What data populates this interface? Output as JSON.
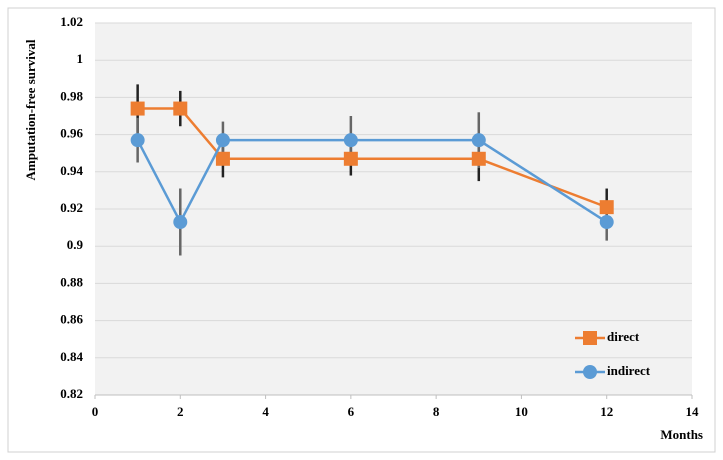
{
  "chart_data": {
    "type": "line",
    "ylabel": "Amputation-free survival",
    "xlabel": "Months",
    "x": [
      1,
      2,
      3,
      6,
      9,
      12
    ],
    "series": [
      {
        "name": "direct",
        "color": "#ed7d31",
        "marker": "square",
        "values": [
          0.974,
          0.974,
          0.947,
          0.947,
          0.947,
          0.921
        ],
        "errors": [
          0.013,
          0.0095,
          0.01,
          0.009,
          0.012,
          0.01
        ]
      },
      {
        "name": "indirect",
        "color": "#5b9bd5",
        "marker": "circle",
        "values": [
          0.957,
          0.913,
          0.957,
          0.957,
          0.957,
          0.913
        ],
        "errors": [
          0.012,
          0.018,
          0.01,
          0.013,
          0.015,
          0.01
        ]
      }
    ],
    "xlim": [
      0,
      14
    ],
    "xticks": [
      0,
      2,
      4,
      6,
      8,
      10,
      12,
      14
    ],
    "ylim": [
      0.82,
      1.02
    ],
    "yticks": [
      0.82,
      0.84,
      0.86,
      0.88,
      0.9,
      0.92,
      0.94,
      0.96,
      0.98,
      1,
      1.02
    ],
    "grid": true,
    "legend": "bottom-right"
  }
}
